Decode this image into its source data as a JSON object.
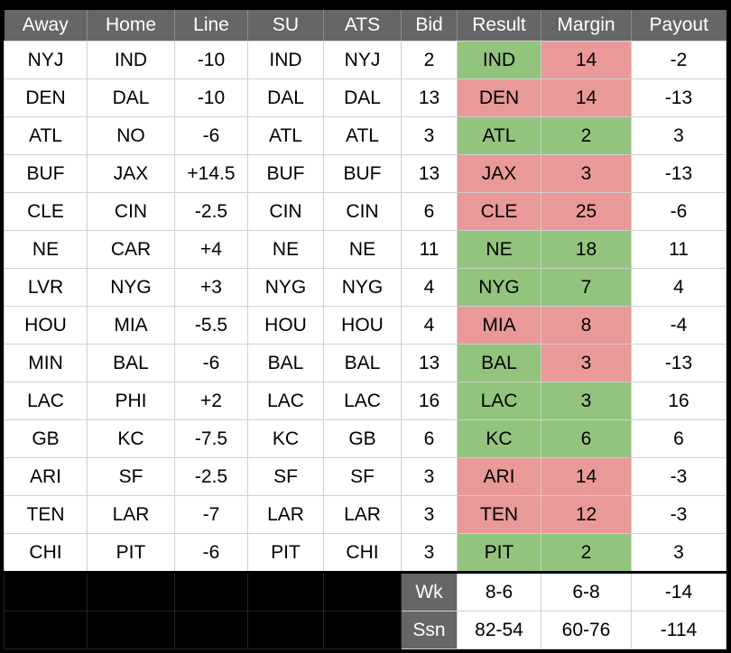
{
  "columns": [
    "Away",
    "Home",
    "Line",
    "SU",
    "ATS",
    "Bid",
    "Result",
    "Margin",
    "Payout"
  ],
  "colors": {
    "page_bg": "#000000",
    "header_bg": "#666666",
    "header_text": "#ffffff",
    "cell_bg": "#ffffff",
    "text": "#000000",
    "grid_line": "#d0d0d0",
    "win_green": "#93c47d",
    "loss_red": "#ea9999",
    "empty_cell_grid": "#242424"
  },
  "rows": [
    {
      "away": "NYJ",
      "home": "IND",
      "line": "-10",
      "su": "IND",
      "ats": "NYJ",
      "bid": "2",
      "result": "IND",
      "result_color": "green",
      "margin": "14",
      "margin_color": "red",
      "payout": "-2"
    },
    {
      "away": "DEN",
      "home": "DAL",
      "line": "-10",
      "su": "DAL",
      "ats": "DAL",
      "bid": "13",
      "result": "DEN",
      "result_color": "red",
      "margin": "14",
      "margin_color": "red",
      "payout": "-13"
    },
    {
      "away": "ATL",
      "home": "NO",
      "line": "-6",
      "su": "ATL",
      "ats": "ATL",
      "bid": "3",
      "result": "ATL",
      "result_color": "green",
      "margin": "2",
      "margin_color": "green",
      "payout": "3"
    },
    {
      "away": "BUF",
      "home": "JAX",
      "line": "+14.5",
      "su": "BUF",
      "ats": "BUF",
      "bid": "13",
      "result": "JAX",
      "result_color": "red",
      "margin": "3",
      "margin_color": "red",
      "payout": "-13"
    },
    {
      "away": "CLE",
      "home": "CIN",
      "line": "-2.5",
      "su": "CIN",
      "ats": "CIN",
      "bid": "6",
      "result": "CLE",
      "result_color": "red",
      "margin": "25",
      "margin_color": "red",
      "payout": "-6"
    },
    {
      "away": "NE",
      "home": "CAR",
      "line": "+4",
      "su": "NE",
      "ats": "NE",
      "bid": "11",
      "result": "NE",
      "result_color": "green",
      "margin": "18",
      "margin_color": "green",
      "payout": "11"
    },
    {
      "away": "LVR",
      "home": "NYG",
      "line": "+3",
      "su": "NYG",
      "ats": "NYG",
      "bid": "4",
      "result": "NYG",
      "result_color": "green",
      "margin": "7",
      "margin_color": "green",
      "payout": "4"
    },
    {
      "away": "HOU",
      "home": "MIA",
      "line": "-5.5",
      "su": "HOU",
      "ats": "HOU",
      "bid": "4",
      "result": "MIA",
      "result_color": "red",
      "margin": "8",
      "margin_color": "red",
      "payout": "-4"
    },
    {
      "away": "MIN",
      "home": "BAL",
      "line": "-6",
      "su": "BAL",
      "ats": "BAL",
      "bid": "13",
      "result": "BAL",
      "result_color": "green",
      "margin": "3",
      "margin_color": "red",
      "payout": "-13"
    },
    {
      "away": "LAC",
      "home": "PHI",
      "line": "+2",
      "su": "LAC",
      "ats": "LAC",
      "bid": "16",
      "result": "LAC",
      "result_color": "green",
      "margin": "3",
      "margin_color": "green",
      "payout": "16"
    },
    {
      "away": "GB",
      "home": "KC",
      "line": "-7.5",
      "su": "KC",
      "ats": "GB",
      "bid": "6",
      "result": "KC",
      "result_color": "green",
      "margin": "6",
      "margin_color": "green",
      "payout": "6"
    },
    {
      "away": "ARI",
      "home": "SF",
      "line": "-2.5",
      "su": "SF",
      "ats": "SF",
      "bid": "3",
      "result": "ARI",
      "result_color": "red",
      "margin": "14",
      "margin_color": "red",
      "payout": "-3"
    },
    {
      "away": "TEN",
      "home": "LAR",
      "line": "-7",
      "su": "LAR",
      "ats": "LAR",
      "bid": "3",
      "result": "TEN",
      "result_color": "red",
      "margin": "12",
      "margin_color": "red",
      "payout": "-3"
    },
    {
      "away": "CHI",
      "home": "PIT",
      "line": "-6",
      "su": "PIT",
      "ats": "CHI",
      "bid": "3",
      "result": "PIT",
      "result_color": "green",
      "margin": "2",
      "margin_color": "green",
      "payout": "3"
    }
  ],
  "footer": {
    "week": {
      "label": "Wk",
      "su_record": "8-6",
      "ats_record": "6-8",
      "payout": "-14"
    },
    "season": {
      "label": "Ssn",
      "su_record": "82-54",
      "ats_record": "60-76",
      "payout": "-114"
    }
  }
}
